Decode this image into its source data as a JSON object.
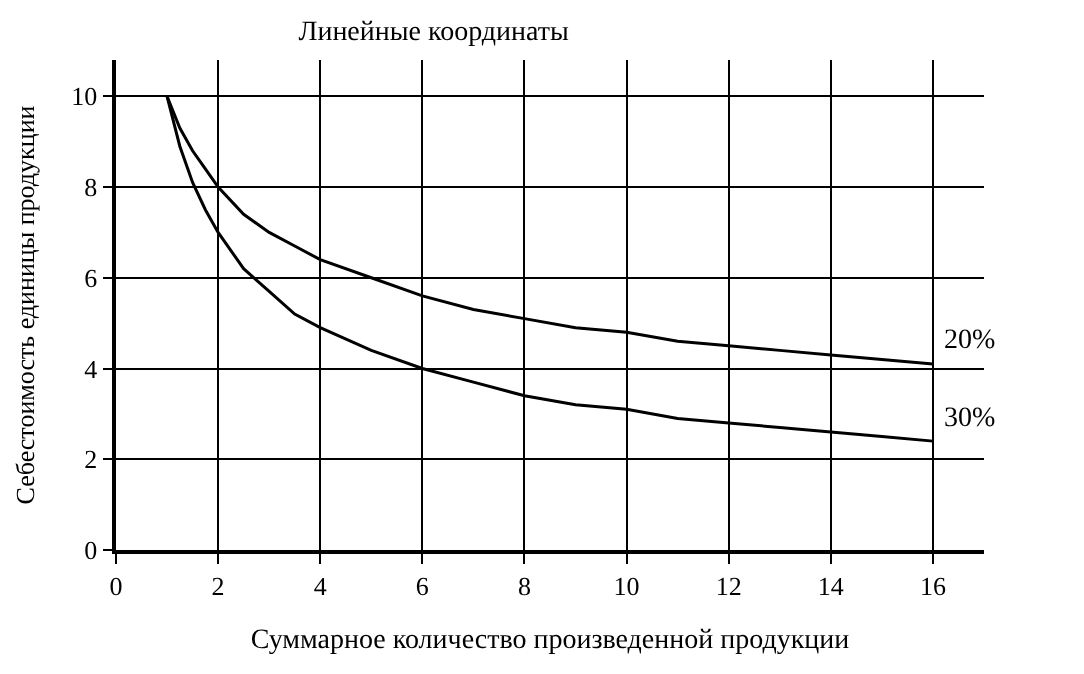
{
  "chart_data": {
    "type": "line",
    "title": "Линейные координаты",
    "xlabel": "Суммарное количество произведенной продукции",
    "ylabel": "Себестоимость единицы продукции",
    "x": [
      1,
      1.25,
      1.5,
      1.75,
      2,
      2.5,
      3,
      3.5,
      4,
      5,
      6,
      7,
      8,
      9,
      10,
      11,
      12,
      13,
      14,
      15,
      16
    ],
    "series": [
      {
        "name": "20%",
        "color": "#000000",
        "values": [
          10,
          9.3,
          8.8,
          8.4,
          8.0,
          7.4,
          7.0,
          6.7,
          6.4,
          6.0,
          5.6,
          5.3,
          5.1,
          4.9,
          4.8,
          4.6,
          4.5,
          4.4,
          4.3,
          4.2,
          4.1
        ]
      },
      {
        "name": "30%",
        "color": "#000000",
        "values": [
          10,
          8.9,
          8.1,
          7.5,
          7.0,
          6.2,
          5.7,
          5.2,
          4.9,
          4.4,
          4.0,
          3.7,
          3.4,
          3.2,
          3.1,
          2.9,
          2.8,
          2.7,
          2.6,
          2.5,
          2.4
        ]
      }
    ],
    "xlim": [
      0,
      17
    ],
    "ylim": [
      0,
      10.8
    ],
    "xticks": [
      0,
      2,
      4,
      6,
      8,
      10,
      12,
      14,
      16
    ],
    "yticks": [
      0,
      2,
      4,
      6,
      8,
      10
    ],
    "grid": true,
    "legend": false,
    "marker": "none",
    "line_style": "solid"
  }
}
